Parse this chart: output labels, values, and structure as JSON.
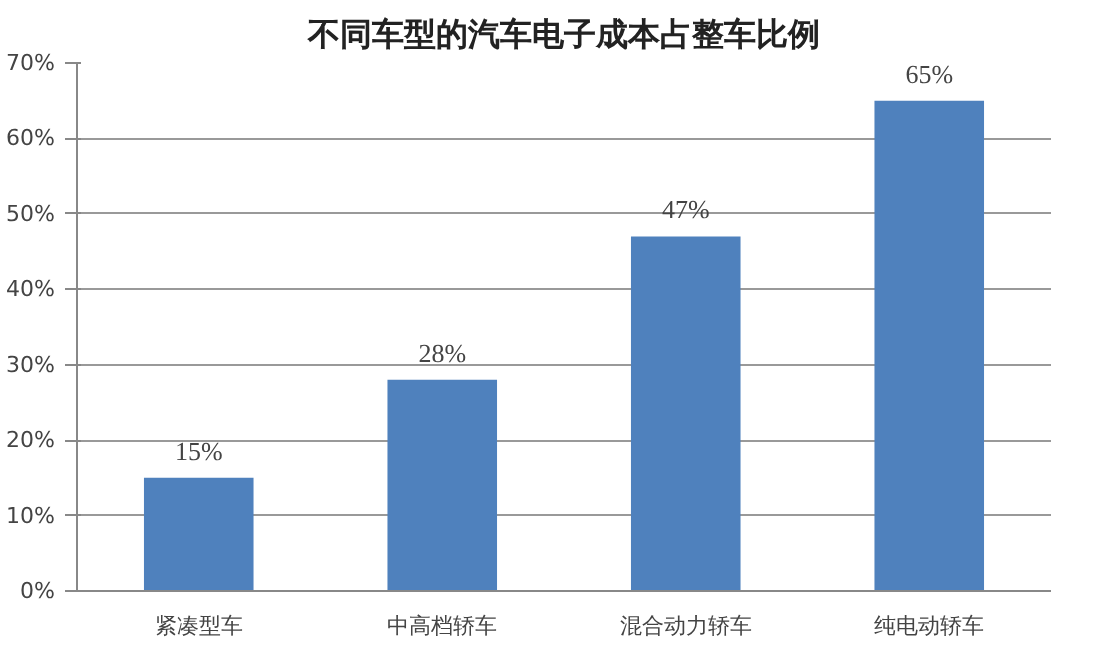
{
  "chart_data": {
    "type": "bar",
    "title": "不同车型的汽车电子成本占整车比例",
    "categories": [
      "紧凑型车",
      "中高档轿车",
      "混合动力轿车",
      "纯电动轿车"
    ],
    "values": [
      15,
      28,
      47,
      65
    ],
    "value_labels": [
      "15%",
      "28%",
      "47%",
      "65%"
    ],
    "color": "#4f81bd",
    "ylim": [
      0,
      70
    ],
    "yticks": [
      {
        "value": 0,
        "label": "0%"
      },
      {
        "value": 10,
        "label": "10%"
      },
      {
        "value": 20,
        "label": "20%"
      },
      {
        "value": 30,
        "label": "30%"
      },
      {
        "value": 40,
        "label": "40%"
      },
      {
        "value": 50,
        "label": "50%"
      },
      {
        "value": 60,
        "label": "60%"
      },
      {
        "value": 70,
        "label": "70%"
      }
    ],
    "grid": "y"
  }
}
